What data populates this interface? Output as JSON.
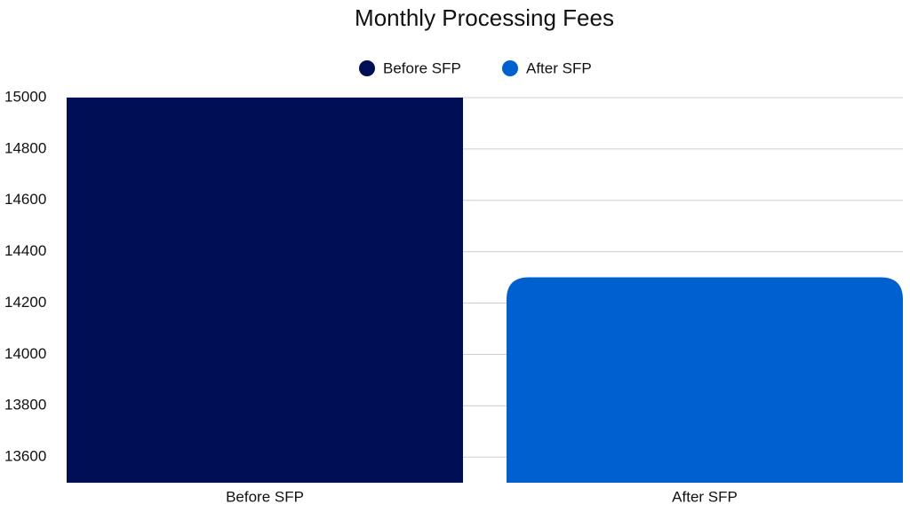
{
  "chart_data": {
    "type": "bar",
    "title": "Monthly Processing Fees",
    "categories": [
      "Before SFP",
      "After SFP"
    ],
    "series": [
      {
        "name": "Before SFP",
        "color": "#000f55",
        "values": [
          15000,
          null
        ]
      },
      {
        "name": "After SFP",
        "color": "#0060d0",
        "values": [
          null,
          14300
        ]
      }
    ],
    "ylim": [
      13500,
      15000
    ],
    "yticks": [
      13600,
      13800,
      14000,
      14200,
      14400,
      14600,
      14800,
      15000
    ],
    "grid": true,
    "legend": "top"
  }
}
